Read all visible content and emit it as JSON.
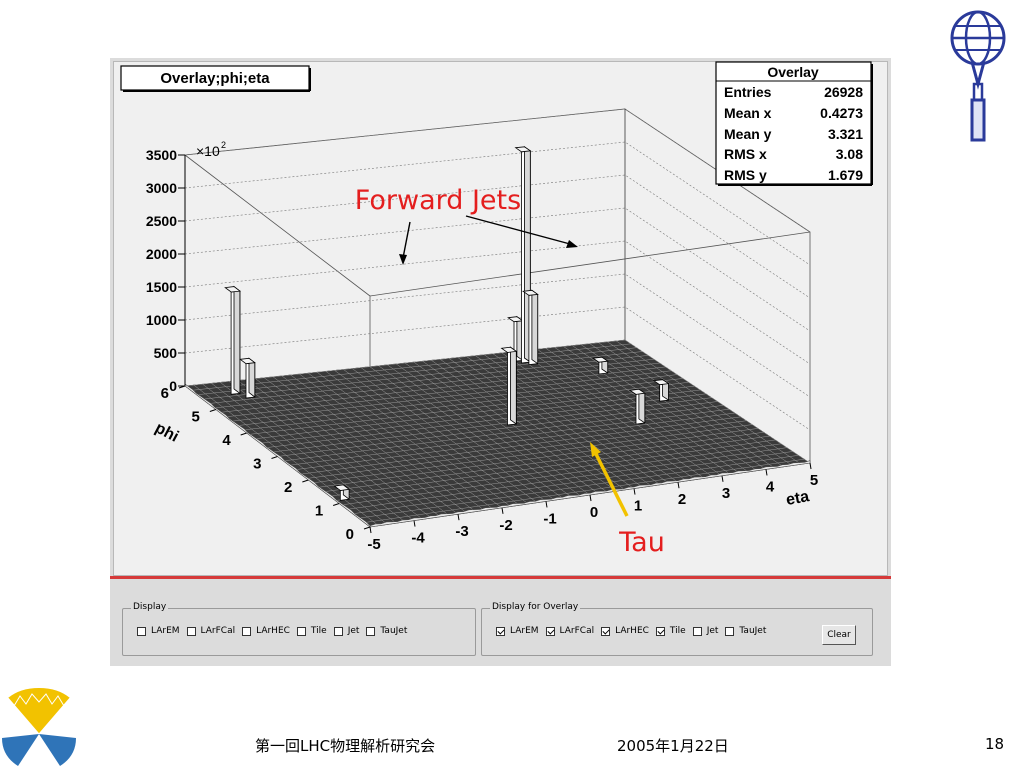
{
  "title_box": "Overlay;phi;eta",
  "stats": {
    "title": "Overlay",
    "rows": [
      {
        "label": "Entries",
        "value": "26928"
      },
      {
        "label": "Mean x",
        "value": "0.4273"
      },
      {
        "label": "Mean y",
        "value": "3.321"
      },
      {
        "label": "RMS x",
        "value": "3.08"
      },
      {
        "label": "RMS y",
        "value": "1.679"
      }
    ]
  },
  "annotations": {
    "forward_jets": "Forward Jets",
    "tau": "Tau",
    "arrow_black": "#000000",
    "arrow_orange": "#f2c200",
    "label_red": "#e41e1e"
  },
  "chart_data": {
    "type": "lego",
    "title": "Overlay;phi;eta",
    "xlabel": "eta",
    "ylabel": "phi",
    "z_multiplier": "×10",
    "z_multiplier_exp": "2",
    "xlim": [
      -5,
      5
    ],
    "ylim": [
      0,
      6
    ],
    "zlim": [
      0,
      3500
    ],
    "x_ticks": [
      "-5",
      "-4",
      "-3",
      "-2",
      "-1",
      "0",
      "1",
      "2",
      "3",
      "4",
      "5"
    ],
    "y_ticks": [
      "0",
      "1",
      "2",
      "3",
      "4",
      "5",
      "6"
    ],
    "z_ticks": [
      "0",
      "500",
      "1000",
      "1500",
      "2000",
      "2500",
      "3000",
      "3500"
    ],
    "peaks": [
      {
        "eta": -4.2,
        "phi": 5.6,
        "z": 1550
      },
      {
        "eta": -4.0,
        "phi": 5.4,
        "z": 520
      },
      {
        "eta": 2.4,
        "phi": 5.6,
        "z": 3200
      },
      {
        "eta": 2.5,
        "phi": 5.5,
        "z": 1050
      },
      {
        "eta": 2.3,
        "phi": 5.7,
        "z": 600
      },
      {
        "eta": 0.4,
        "phi": 3.2,
        "z": 1100
      },
      {
        "eta": 2.9,
        "phi": 2.6,
        "z": 450
      },
      {
        "eta": 4.0,
        "phi": 3.4,
        "z": 250
      },
      {
        "eta": -4.8,
        "phi": 1.2,
        "z": 150
      },
      {
        "eta": 3.6,
        "phi": 4.8,
        "z": 180
      }
    ],
    "grid": true
  },
  "controls": {
    "display": {
      "legend": "Display",
      "items": [
        {
          "label": "LArEM",
          "checked": false
        },
        {
          "label": "LArFCal",
          "checked": false
        },
        {
          "label": "LArHEC",
          "checked": false
        },
        {
          "label": "Tile",
          "checked": false
        },
        {
          "label": "Jet",
          "checked": false
        },
        {
          "label": "TauJet",
          "checked": false
        }
      ]
    },
    "overlay": {
      "legend": "Display for Overlay",
      "items": [
        {
          "label": "LArEM",
          "checked": true
        },
        {
          "label": "LArFCal",
          "checked": true
        },
        {
          "label": "LArHEC",
          "checked": true
        },
        {
          "label": "Tile",
          "checked": true
        },
        {
          "label": "Jet",
          "checked": false
        },
        {
          "label": "TauJet",
          "checked": false
        }
      ],
      "clear_label": "Clear"
    }
  },
  "footer": {
    "left": "第一回LHC物理解析研究会",
    "date": "2005年1月22日",
    "page": "18"
  },
  "logos": {
    "top_right": "atlas-logo-icon",
    "bottom_left": "ginkgo-logo-icon"
  }
}
